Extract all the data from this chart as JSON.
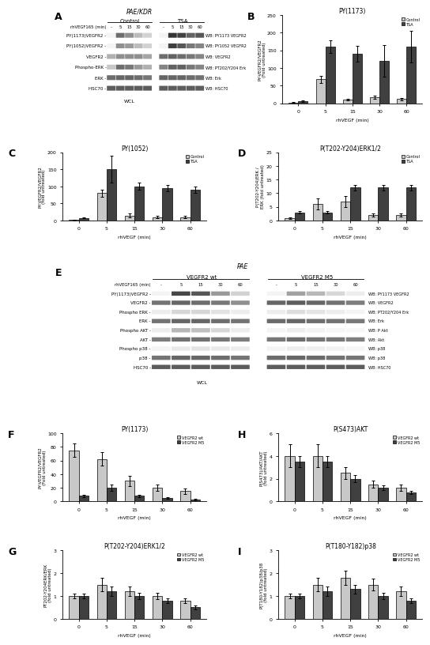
{
  "panel_B": {
    "title": "PY(1173)",
    "xlabel": "rhVEGF (min)",
    "ylabel": "PY-VEGFR2/VEGFR2\n(Fold untreated)",
    "ylim": [
      0,
      250
    ],
    "yticks": [
      0,
      50,
      100,
      150,
      200,
      250
    ],
    "xticklabels": [
      "0",
      "5",
      "15",
      "30",
      "60"
    ],
    "control_vals": [
      2,
      68,
      10,
      17,
      12
    ],
    "tsa_vals": [
      5,
      160,
      140,
      120,
      160
    ],
    "control_err": [
      1,
      10,
      3,
      4,
      3
    ],
    "tsa_err": [
      2,
      18,
      22,
      45,
      45
    ],
    "legend_labels": [
      "Control",
      "TSA"
    ]
  },
  "panel_C": {
    "title": "PY(1052)",
    "xlabel": "rhVEGF (min)",
    "ylabel": "PY:VEGFR2/VEGFR2\n(fold untreated)",
    "ylim": [
      0,
      200
    ],
    "yticks": [
      0,
      50,
      100,
      150,
      200
    ],
    "xticklabels": [
      "0",
      "5",
      "15",
      "30",
      "60"
    ],
    "control_vals": [
      2,
      80,
      15,
      10,
      10
    ],
    "tsa_vals": [
      8,
      150,
      100,
      95,
      90
    ],
    "control_err": [
      1,
      10,
      5,
      3,
      3
    ],
    "tsa_err": [
      2,
      40,
      10,
      10,
      10
    ],
    "legend_labels": [
      "Control",
      "TSA"
    ]
  },
  "panel_D": {
    "title": "P(T202-Y204)ERK1/2",
    "xlabel": "rhVEGF (min)",
    "ylabel": "P(T202-Y204)ERK /\nERK (fold untreated)",
    "ylim": [
      0,
      25
    ],
    "yticks": [
      0,
      5,
      10,
      15,
      20,
      25
    ],
    "xticklabels": [
      "0",
      "5",
      "15",
      "30",
      "60"
    ],
    "control_vals": [
      1,
      6,
      7,
      2,
      2
    ],
    "tsa_vals": [
      3,
      3,
      12,
      12,
      12
    ],
    "control_err": [
      0.3,
      2,
      2,
      0.5,
      0.5
    ],
    "tsa_err": [
      0.5,
      0.5,
      1,
      1,
      1
    ],
    "legend_labels": [
      "Control",
      "TSA"
    ]
  },
  "panel_F": {
    "title": "PY(1173)",
    "xlabel": "rhVEGF (min)",
    "ylabel": "PY-VEGFR2/VEGFR2\n(Fold untreated)",
    "ylim": [
      0,
      100
    ],
    "yticks": [
      0,
      20,
      40,
      60,
      80,
      100
    ],
    "xticklabels": [
      "0",
      "5",
      "15",
      "30",
      "60"
    ],
    "wt_vals": [
      75,
      62,
      30,
      20,
      15
    ],
    "m5_vals": [
      8,
      20,
      8,
      5,
      3
    ],
    "wt_err": [
      10,
      10,
      8,
      5,
      4
    ],
    "m5_err": [
      2,
      5,
      2,
      1,
      1
    ],
    "legend_labels": [
      "VEGFR2 wt",
      "VEGFR2 M5"
    ]
  },
  "panel_G": {
    "title": "P(T202-Y204)ERK1/2",
    "xlabel": "rhVEGF (min)",
    "ylabel": "PT202-Y204ERK/ERK\n(fold untreated)",
    "ylim": [
      0,
      3
    ],
    "yticks": [
      0,
      1,
      2,
      3
    ],
    "xticklabels": [
      "0",
      "5",
      "15",
      "30",
      "60"
    ],
    "wt_vals": [
      1,
      1.5,
      1.2,
      1.0,
      0.8
    ],
    "m5_vals": [
      1,
      1.2,
      1.0,
      0.8,
      0.5
    ],
    "wt_err": [
      0.1,
      0.3,
      0.2,
      0.15,
      0.1
    ],
    "m5_err": [
      0.1,
      0.2,
      0.15,
      0.1,
      0.08
    ],
    "legend_labels": [
      "VEGFR2 wt",
      "VEGFR2 M5"
    ]
  },
  "panel_H": {
    "title": "P(S473)AKT",
    "xlabel": "rhVEGF (min)",
    "ylabel": "P(S473)/AKT/AKT\n(fold untreated)",
    "ylim": [
      0,
      6
    ],
    "yticks": [
      0,
      2,
      4,
      6
    ],
    "xticklabels": [
      "0",
      "5",
      "15",
      "30",
      "60"
    ],
    "wt_vals": [
      4,
      4,
      2.5,
      1.5,
      1.2
    ],
    "m5_vals": [
      3.5,
      3.5,
      2,
      1.2,
      0.8
    ],
    "wt_err": [
      1,
      1,
      0.5,
      0.3,
      0.3
    ],
    "m5_err": [
      0.5,
      0.5,
      0.3,
      0.2,
      0.15
    ],
    "legend_labels": [
      "VEGFR2 wt",
      "VEGFR2 M5"
    ]
  },
  "panel_I": {
    "title": "P(T180-Y182)p38",
    "xlabel": "rhVEGF (min)",
    "ylabel": "P(T180-Y182)p38/p38\n(fold untreated)",
    "ylim": [
      0,
      3
    ],
    "yticks": [
      0,
      1,
      2,
      3
    ],
    "xticklabels": [
      "0",
      "5",
      "15",
      "30",
      "60"
    ],
    "wt_vals": [
      1,
      1.5,
      1.8,
      1.5,
      1.2
    ],
    "m5_vals": [
      1,
      1.2,
      1.3,
      1.0,
      0.8
    ],
    "wt_err": [
      0.1,
      0.3,
      0.3,
      0.25,
      0.2
    ],
    "m5_err": [
      0.1,
      0.2,
      0.2,
      0.15,
      0.1
    ],
    "legend_labels": [
      "VEGFR2 wt",
      "VEGFR2 M5"
    ]
  },
  "color_control": "#c8c8c8",
  "color_tsa": "#404040",
  "color_wt": "#c8c8c8",
  "color_m5": "#404040",
  "bg_color": "#ffffff",
  "panel_A_title": "PAE/KDR",
  "panel_E_title": "PAE",
  "blot_rows_A": [
    "PY(1173)VEGFR2 -",
    "PY(1052)VEGFR2 -",
    "VEGFR2 -",
    "Phospho-ERK -",
    "ERK -",
    "HSC70 -"
  ],
  "wb_labels_A": [
    "WB: PY1173 VEGFR2",
    "WB: PY1052 VEGFR2",
    "WB: VEGFR2",
    "WB: PT202/Y204 Erk",
    "WB: Erk",
    "WB: HSC70"
  ],
  "blot_rows_E": [
    "PY(1173)VEGFR2 -",
    "VEGFR2 -",
    "Phospho ERK -",
    "ERK -",
    "Phospho AKT -",
    "AKT -",
    "Phospho p38 -",
    "p38 -",
    "HSC70 -"
  ],
  "wb_labels_E": [
    "WB: PY1173 VEGFR2",
    "WB: VEGFR2",
    "WB: PT202/Y204 Erk",
    "WB: Erk",
    "WB: P Akt",
    "WB: Akt",
    "WB: p38",
    "WB: p38",
    "WB: HSC70"
  ],
  "A_intensities": [
    [
      0.05,
      0.65,
      0.5,
      0.3,
      0.2,
      0.05,
      0.9,
      0.85,
      0.7,
      0.75
    ],
    [
      0.05,
      0.5,
      0.45,
      0.3,
      0.2,
      0.05,
      0.85,
      0.75,
      0.6,
      0.55
    ],
    [
      0.35,
      0.5,
      0.5,
      0.5,
      0.4,
      0.65,
      0.7,
      0.65,
      0.6,
      0.55
    ],
    [
      0.25,
      0.65,
      0.6,
      0.45,
      0.35,
      0.55,
      0.7,
      0.7,
      0.6,
      0.55
    ],
    [
      0.65,
      0.68,
      0.68,
      0.65,
      0.6,
      0.68,
      0.68,
      0.68,
      0.65,
      0.63
    ],
    [
      0.72,
      0.72,
      0.72,
      0.72,
      0.72,
      0.72,
      0.72,
      0.72,
      0.72,
      0.72
    ]
  ],
  "E_intensities": [
    [
      0.05,
      0.82,
      0.75,
      0.45,
      0.2,
      0.05,
      0.42,
      0.32,
      0.18,
      0.08
    ],
    [
      0.62,
      0.68,
      0.65,
      0.6,
      0.5,
      0.68,
      0.72,
      0.68,
      0.63,
      0.58
    ],
    [
      0.08,
      0.18,
      0.18,
      0.13,
      0.08,
      0.08,
      0.15,
      0.12,
      0.08,
      0.05
    ],
    [
      0.62,
      0.68,
      0.68,
      0.65,
      0.62,
      0.66,
      0.68,
      0.65,
      0.63,
      0.6
    ],
    [
      0.08,
      0.32,
      0.28,
      0.18,
      0.08,
      0.05,
      0.08,
      0.06,
      0.04,
      0.03
    ],
    [
      0.58,
      0.63,
      0.63,
      0.6,
      0.58,
      0.6,
      0.65,
      0.62,
      0.6,
      0.57
    ],
    [
      0.05,
      0.1,
      0.12,
      0.1,
      0.08,
      0.05,
      0.08,
      0.07,
      0.06,
      0.04
    ],
    [
      0.62,
      0.68,
      0.68,
      0.65,
      0.62,
      0.65,
      0.68,
      0.66,
      0.63,
      0.61
    ],
    [
      0.72,
      0.72,
      0.72,
      0.72,
      0.72,
      0.72,
      0.72,
      0.72,
      0.72,
      0.72
    ]
  ]
}
